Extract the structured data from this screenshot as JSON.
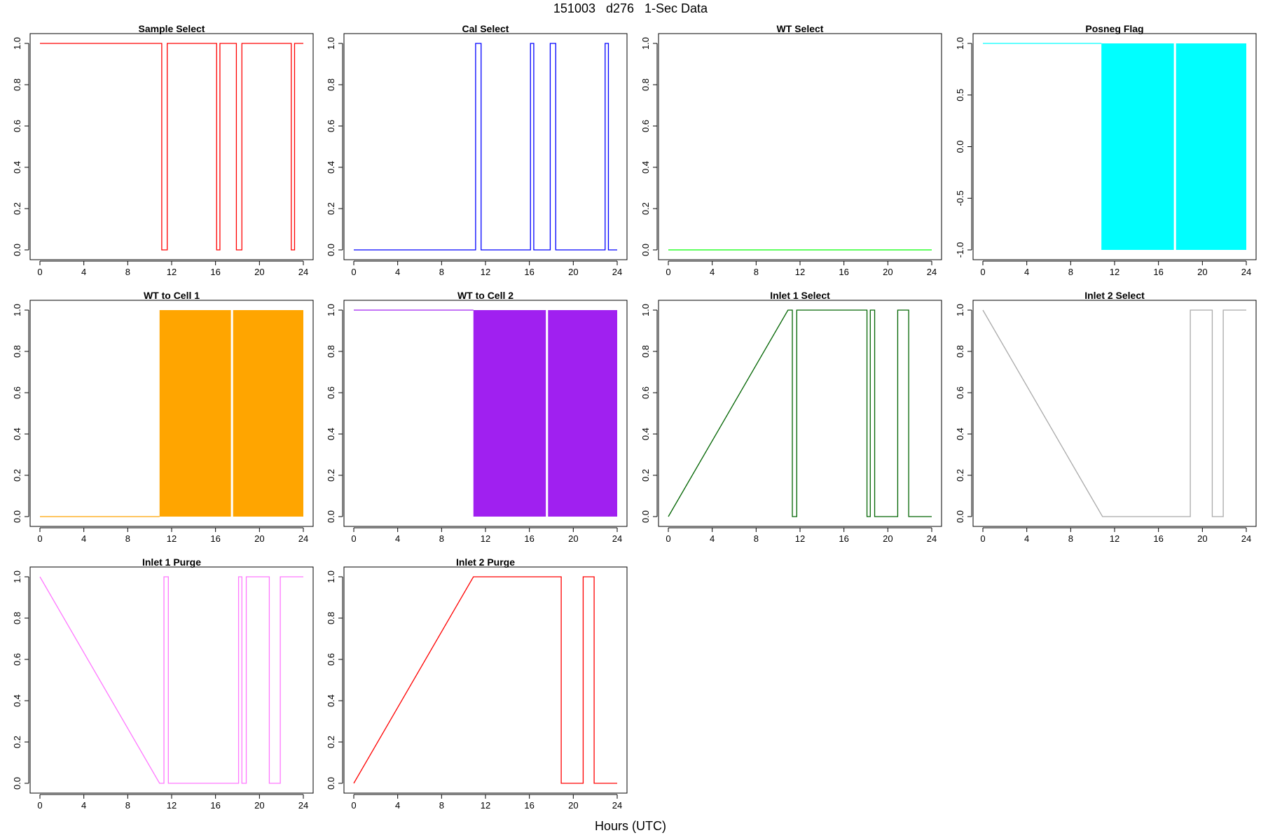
{
  "figure": {
    "title": "151003   d276   1-Sec Data",
    "xlabel": "Hours (UTC)"
  },
  "chart_data": [
    {
      "type": "line",
      "title": "Sample Select",
      "color": "#ff0000",
      "xlim": [
        0,
        24
      ],
      "ylim": [
        0,
        1
      ],
      "xticks": [
        "0",
        "4",
        "8",
        "12",
        "16",
        "20",
        "24"
      ],
      "yticks": [
        "0.0",
        "0.2",
        "0.4",
        "0.6",
        "0.8",
        "1.0"
      ],
      "x": [
        0,
        11.1,
        11.1,
        11.6,
        11.6,
        16.1,
        16.1,
        16.4,
        16.4,
        17.9,
        17.9,
        18.4,
        18.4,
        22.9,
        22.9,
        23.2,
        23.2,
        24
      ],
      "y": [
        1,
        1,
        0,
        0,
        1,
        1,
        0,
        0,
        1,
        1,
        0,
        0,
        1,
        1,
        0,
        0,
        1,
        1
      ]
    },
    {
      "type": "line",
      "title": "Cal Select",
      "color": "#0000ff",
      "xlim": [
        0,
        24
      ],
      "ylim": [
        0,
        1
      ],
      "xticks": [
        "0",
        "4",
        "8",
        "12",
        "16",
        "20",
        "24"
      ],
      "yticks": [
        "0.0",
        "0.2",
        "0.4",
        "0.6",
        "0.8",
        "1.0"
      ],
      "x": [
        0,
        11.1,
        11.1,
        11.6,
        11.6,
        16.1,
        16.1,
        16.4,
        16.4,
        17.9,
        17.9,
        18.4,
        18.4,
        22.9,
        22.9,
        23.2,
        23.2,
        24
      ],
      "y": [
        0,
        0,
        1,
        1,
        0,
        0,
        1,
        1,
        0,
        0,
        1,
        1,
        0,
        0,
        1,
        1,
        0,
        0
      ]
    },
    {
      "type": "line",
      "title": "WT Select",
      "color": "#00ff00",
      "xlim": [
        0,
        24
      ],
      "ylim": [
        0,
        1
      ],
      "xticks": [
        "0",
        "4",
        "8",
        "12",
        "16",
        "20",
        "24"
      ],
      "yticks": [
        "0.0",
        "0.2",
        "0.4",
        "0.6",
        "0.8",
        "1.0"
      ],
      "x": [
        0,
        24
      ],
      "y": [
        0,
        0
      ]
    },
    {
      "type": "area",
      "title": "Posneg Flag",
      "color": "#00ffff",
      "xlim": [
        0,
        24
      ],
      "ylim": [
        -1,
        1
      ],
      "xticks": [
        "0",
        "4",
        "8",
        "12",
        "16",
        "20",
        "24"
      ],
      "yticks": [
        "-1.0",
        "-0.5",
        "0.0",
        "0.5",
        "1.0"
      ],
      "x": [
        0,
        10.8
      ],
      "y": [
        1,
        1
      ],
      "filled_bands": [
        [
          10.8,
          17.4
        ],
        [
          17.6,
          24
        ]
      ]
    },
    {
      "type": "area",
      "title": "WT to Cell 1",
      "color": "#ffa500",
      "xlim": [
        0,
        24
      ],
      "ylim": [
        0,
        1
      ],
      "xticks": [
        "0",
        "4",
        "8",
        "12",
        "16",
        "20",
        "24"
      ],
      "yticks": [
        "0.0",
        "0.2",
        "0.4",
        "0.6",
        "0.8",
        "1.0"
      ],
      "x": [
        0,
        10.9
      ],
      "y": [
        0,
        0
      ],
      "filled_bands": [
        [
          10.9,
          17.4
        ],
        [
          17.6,
          24
        ]
      ]
    },
    {
      "type": "area",
      "title": "WT to Cell 2",
      "color": "#a020f0",
      "xlim": [
        0,
        24
      ],
      "ylim": [
        0,
        1
      ],
      "xticks": [
        "0",
        "4",
        "8",
        "12",
        "16",
        "20",
        "24"
      ],
      "yticks": [
        "0.0",
        "0.2",
        "0.4",
        "0.6",
        "0.8",
        "1.0"
      ],
      "x": [
        0,
        10.9
      ],
      "y": [
        1,
        1
      ],
      "filled_bands": [
        [
          10.9,
          17.5
        ],
        [
          17.7,
          24
        ]
      ]
    },
    {
      "type": "line",
      "title": "Inlet 1 Select",
      "color": "#006400",
      "xlim": [
        0,
        24
      ],
      "ylim": [
        0,
        1
      ],
      "xticks": [
        "0",
        "4",
        "8",
        "12",
        "16",
        "20",
        "24"
      ],
      "yticks": [
        "0.0",
        "0.2",
        "0.4",
        "0.6",
        "0.8",
        "1.0"
      ],
      "x": [
        0,
        10.9,
        11.3,
        11.3,
        11.7,
        11.7,
        18.1,
        18.1,
        18.4,
        18.4,
        18.8,
        18.8,
        20.9,
        20.9,
        21.9,
        21.9,
        24
      ],
      "y": [
        0,
        1,
        1,
        0,
        0,
        1,
        1,
        0,
        0,
        1,
        1,
        0,
        0,
        1,
        1,
        0,
        0
      ]
    },
    {
      "type": "line",
      "title": "Inlet 2 Select",
      "color": "#a9a9a9",
      "xlim": [
        0,
        24
      ],
      "ylim": [
        0,
        1
      ],
      "xticks": [
        "0",
        "4",
        "8",
        "12",
        "16",
        "20",
        "24"
      ],
      "yticks": [
        "0.0",
        "0.2",
        "0.4",
        "0.6",
        "0.8",
        "1.0"
      ],
      "x": [
        0,
        10.9,
        18.9,
        18.9,
        20.9,
        20.9,
        21.9,
        21.9,
        24
      ],
      "y": [
        1,
        0,
        0,
        1,
        1,
        0,
        0,
        1,
        1
      ]
    },
    {
      "type": "line",
      "title": "Inlet 1 Purge",
      "color": "#ff77ff",
      "xlim": [
        0,
        24
      ],
      "ylim": [
        0,
        1
      ],
      "xticks": [
        "0",
        "4",
        "8",
        "12",
        "16",
        "20",
        "24"
      ],
      "yticks": [
        "0.0",
        "0.2",
        "0.4",
        "0.6",
        "0.8",
        "1.0"
      ],
      "x": [
        0,
        10.9,
        11.3,
        11.3,
        11.7,
        11.7,
        18.1,
        18.1,
        18.4,
        18.4,
        18.8,
        18.8,
        20.9,
        20.9,
        21.9,
        21.9,
        24
      ],
      "y": [
        1,
        0,
        0,
        1,
        1,
        0,
        0,
        1,
        1,
        0,
        0,
        1,
        1,
        0,
        0,
        1,
        1
      ]
    },
    {
      "type": "line",
      "title": "Inlet 2 Purge",
      "color": "#ff0000",
      "xlim": [
        0,
        24
      ],
      "ylim": [
        0,
        1
      ],
      "xticks": [
        "0",
        "4",
        "8",
        "12",
        "16",
        "20",
        "24"
      ],
      "yticks": [
        "0.0",
        "0.2",
        "0.4",
        "0.6",
        "0.8",
        "1.0"
      ],
      "x": [
        0,
        10.9,
        18.9,
        18.9,
        20.9,
        20.9,
        21.9,
        21.9,
        24
      ],
      "y": [
        0,
        1,
        1,
        0,
        0,
        1,
        1,
        0,
        0
      ]
    }
  ]
}
